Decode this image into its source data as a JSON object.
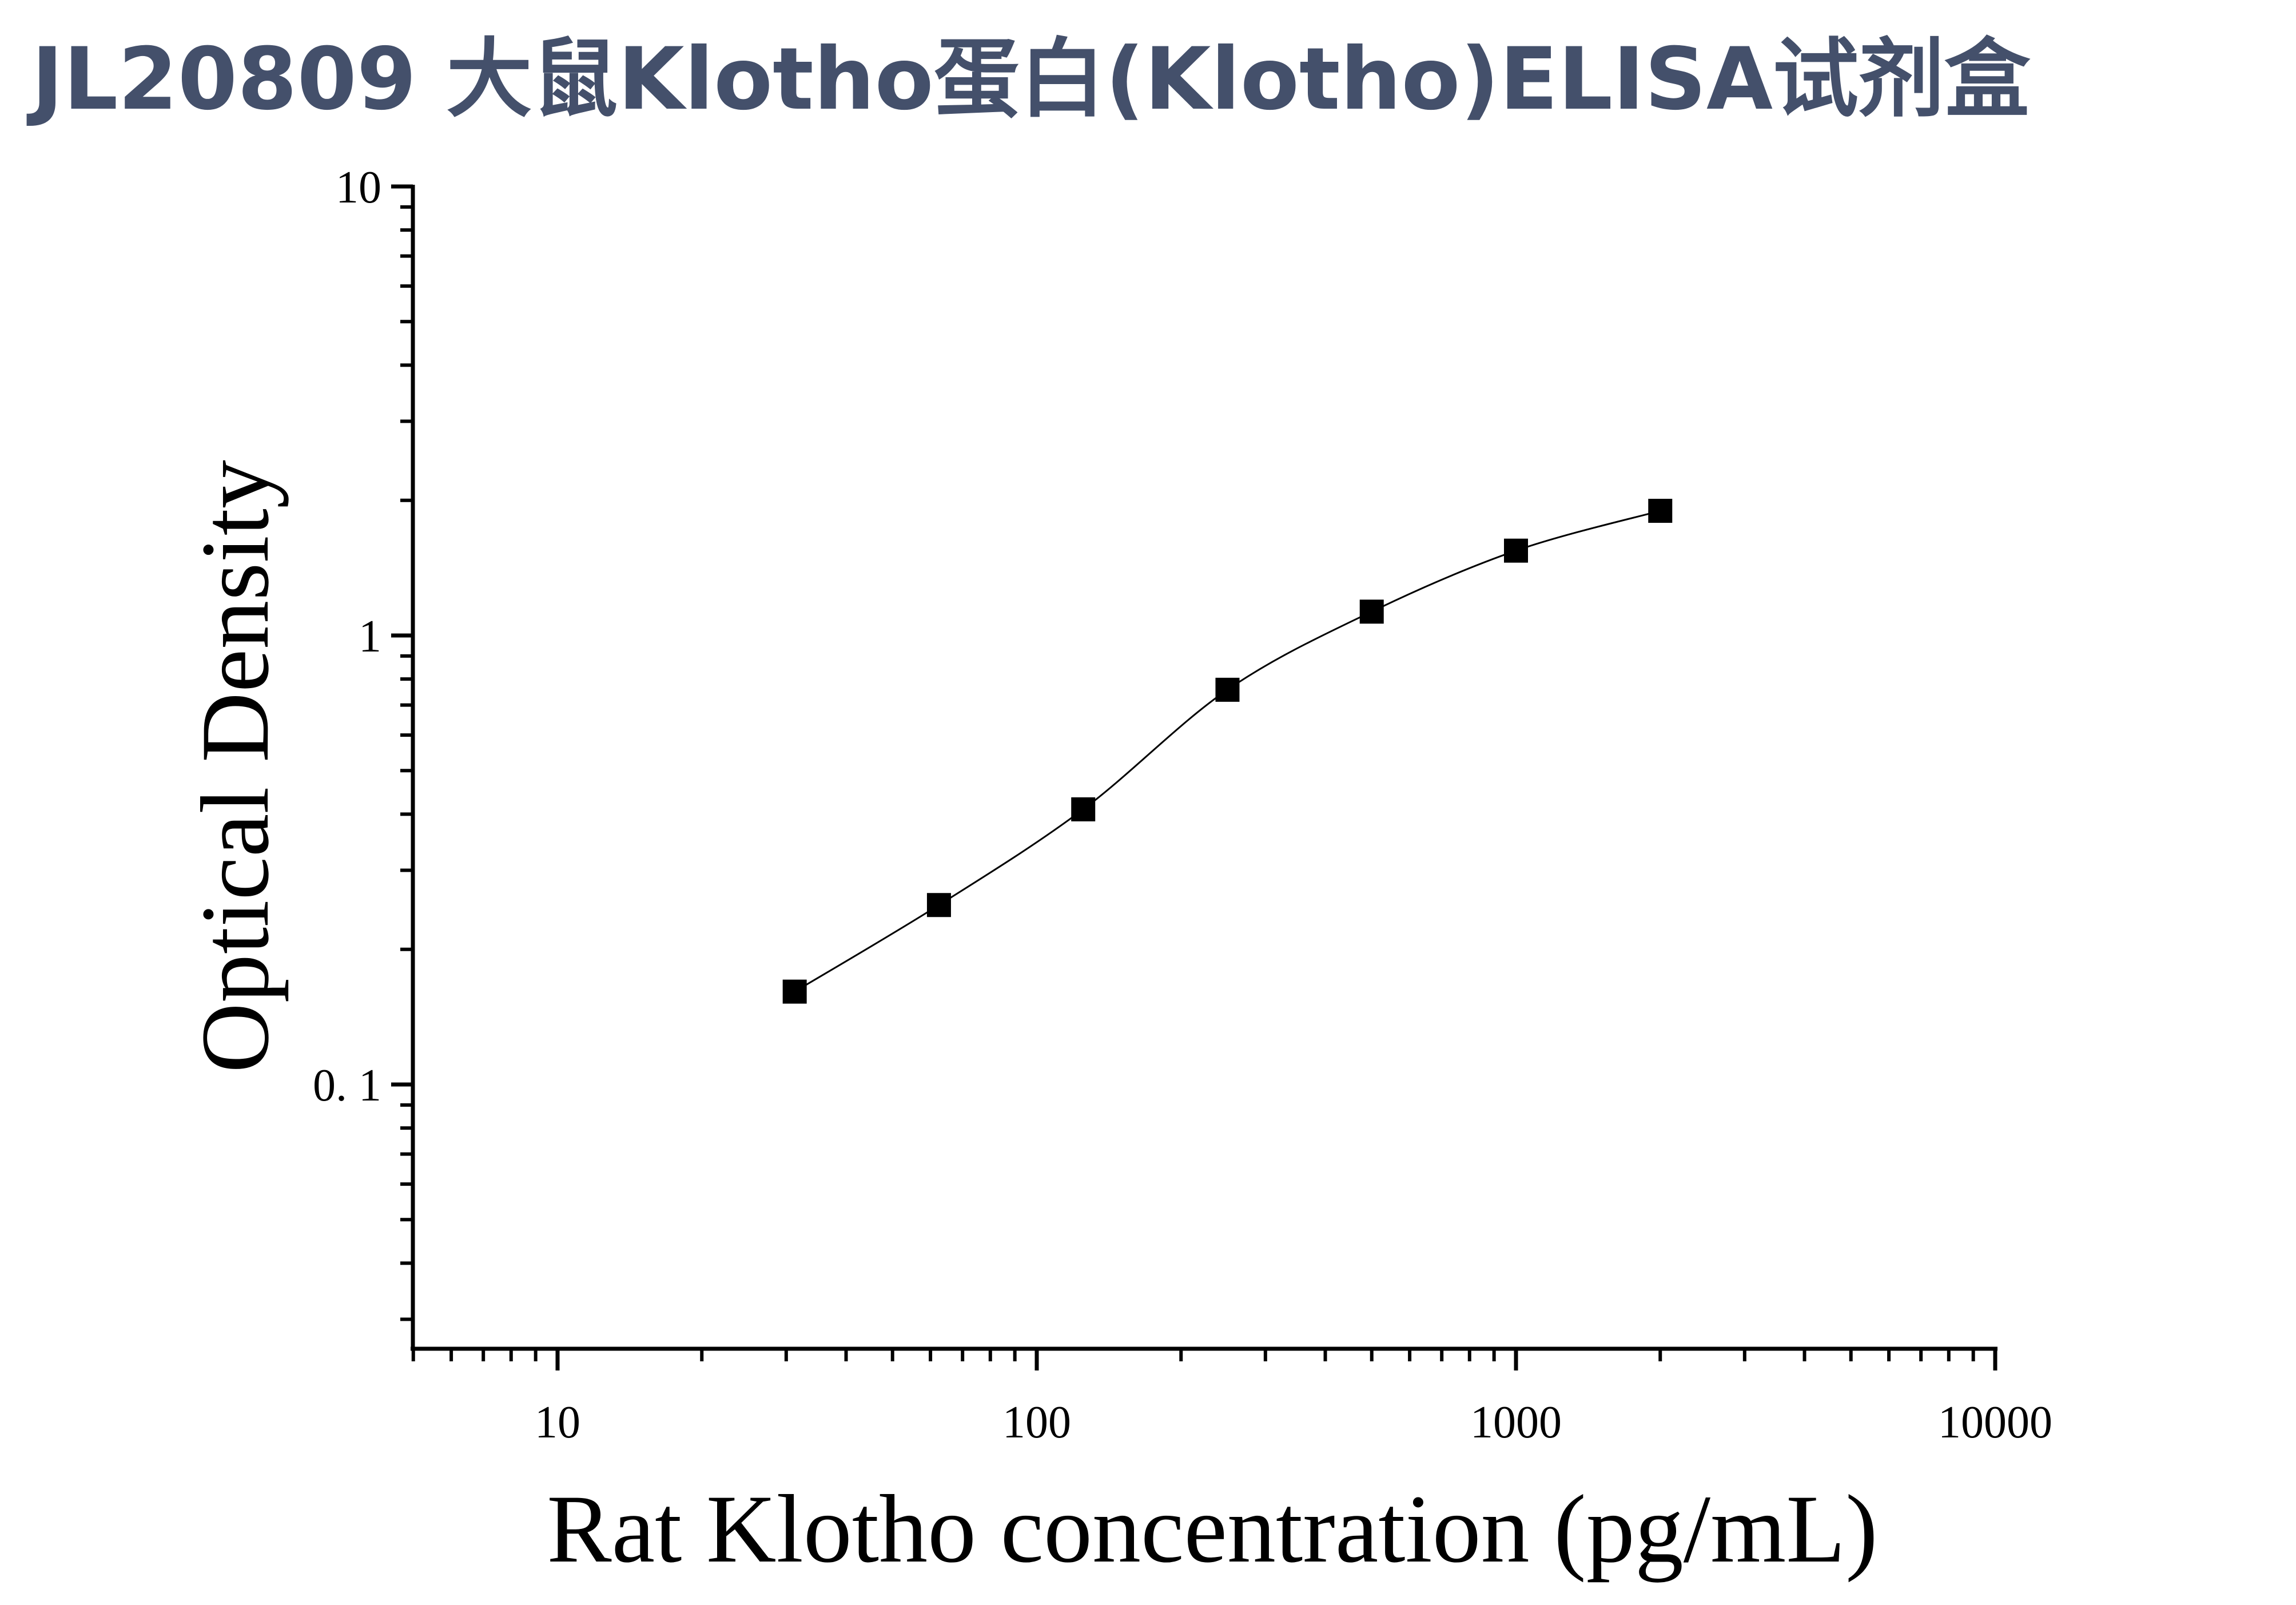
{
  "chart_data": {
    "type": "scatter",
    "title": "JL20809 大鼠Klotho蛋白(Klotho)ELISA试剂盒",
    "xlabel": "Rat Klotho concentration (pg/mL)",
    "ylabel": "Optical Density",
    "x_scale": "log",
    "y_scale": "log",
    "xlim": [
      5,
      10000
    ],
    "ylim": [
      0.025,
      10
    ],
    "x_ticks": [
      10,
      100,
      1000,
      10000
    ],
    "x_tick_labels": [
      "10",
      "100",
      "1000",
      "10000"
    ],
    "y_ticks": [
      0.1,
      1,
      10
    ],
    "y_tick_labels": [
      "0. 1",
      "1",
      "10"
    ],
    "grid": false,
    "legend": "none",
    "series": [
      {
        "marker": "square",
        "color": "#000000",
        "x": [
          31.25,
          62.5,
          125,
          250,
          500,
          1000,
          2000
        ],
        "y": [
          0.161,
          0.251,
          0.41,
          0.757,
          1.13,
          1.545,
          1.895
        ]
      }
    ],
    "fit_curve": {
      "type": "four-parameter logistic",
      "color": "#000000"
    }
  },
  "colors": {
    "title": "#44506b",
    "axes": "#000000",
    "markers": "#000000"
  }
}
